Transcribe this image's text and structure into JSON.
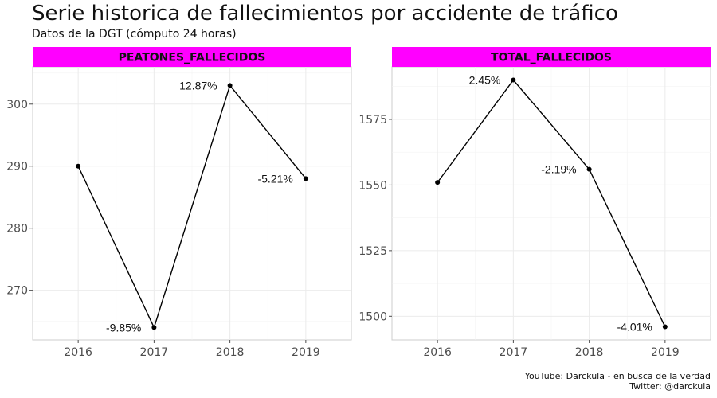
{
  "title": "Serie historica de fallecimientos por accidente de tráfico",
  "subtitle": "Datos de la DGT (cómputo 24 horas)",
  "caption": [
    "YouTube: Darckula - en busca de la verdad",
    "Twitter: @darckula"
  ],
  "colors": {
    "strip": "#FF00FF",
    "line": "#000000",
    "grid": "#EBEBEB",
    "panel_border": "#CCCCCC"
  },
  "chart_data": [
    {
      "type": "line",
      "title": "PEATONES_FALLECIDOS",
      "x": [
        "2016",
        "2017",
        "2018",
        "2019"
      ],
      "values": [
        290,
        264,
        303,
        288
      ],
      "point_labels": [
        "",
        "-9.85%",
        "12.87%",
        "-5.21%"
      ],
      "yticks": [
        270,
        280,
        290,
        300
      ],
      "ylim": [
        262,
        306
      ],
      "grid": true
    },
    {
      "type": "line",
      "title": "TOTAL_FALLECIDOS",
      "x": [
        "2016",
        "2017",
        "2018",
        "2019"
      ],
      "values": [
        1551,
        1590,
        1556,
        1496
      ],
      "point_labels": [
        "",
        "2.45%",
        "-2.19%",
        "-4.01%"
      ],
      "yticks": [
        1500,
        1525,
        1550,
        1575
      ],
      "ylim": [
        1491,
        1595
      ],
      "grid": true
    }
  ]
}
